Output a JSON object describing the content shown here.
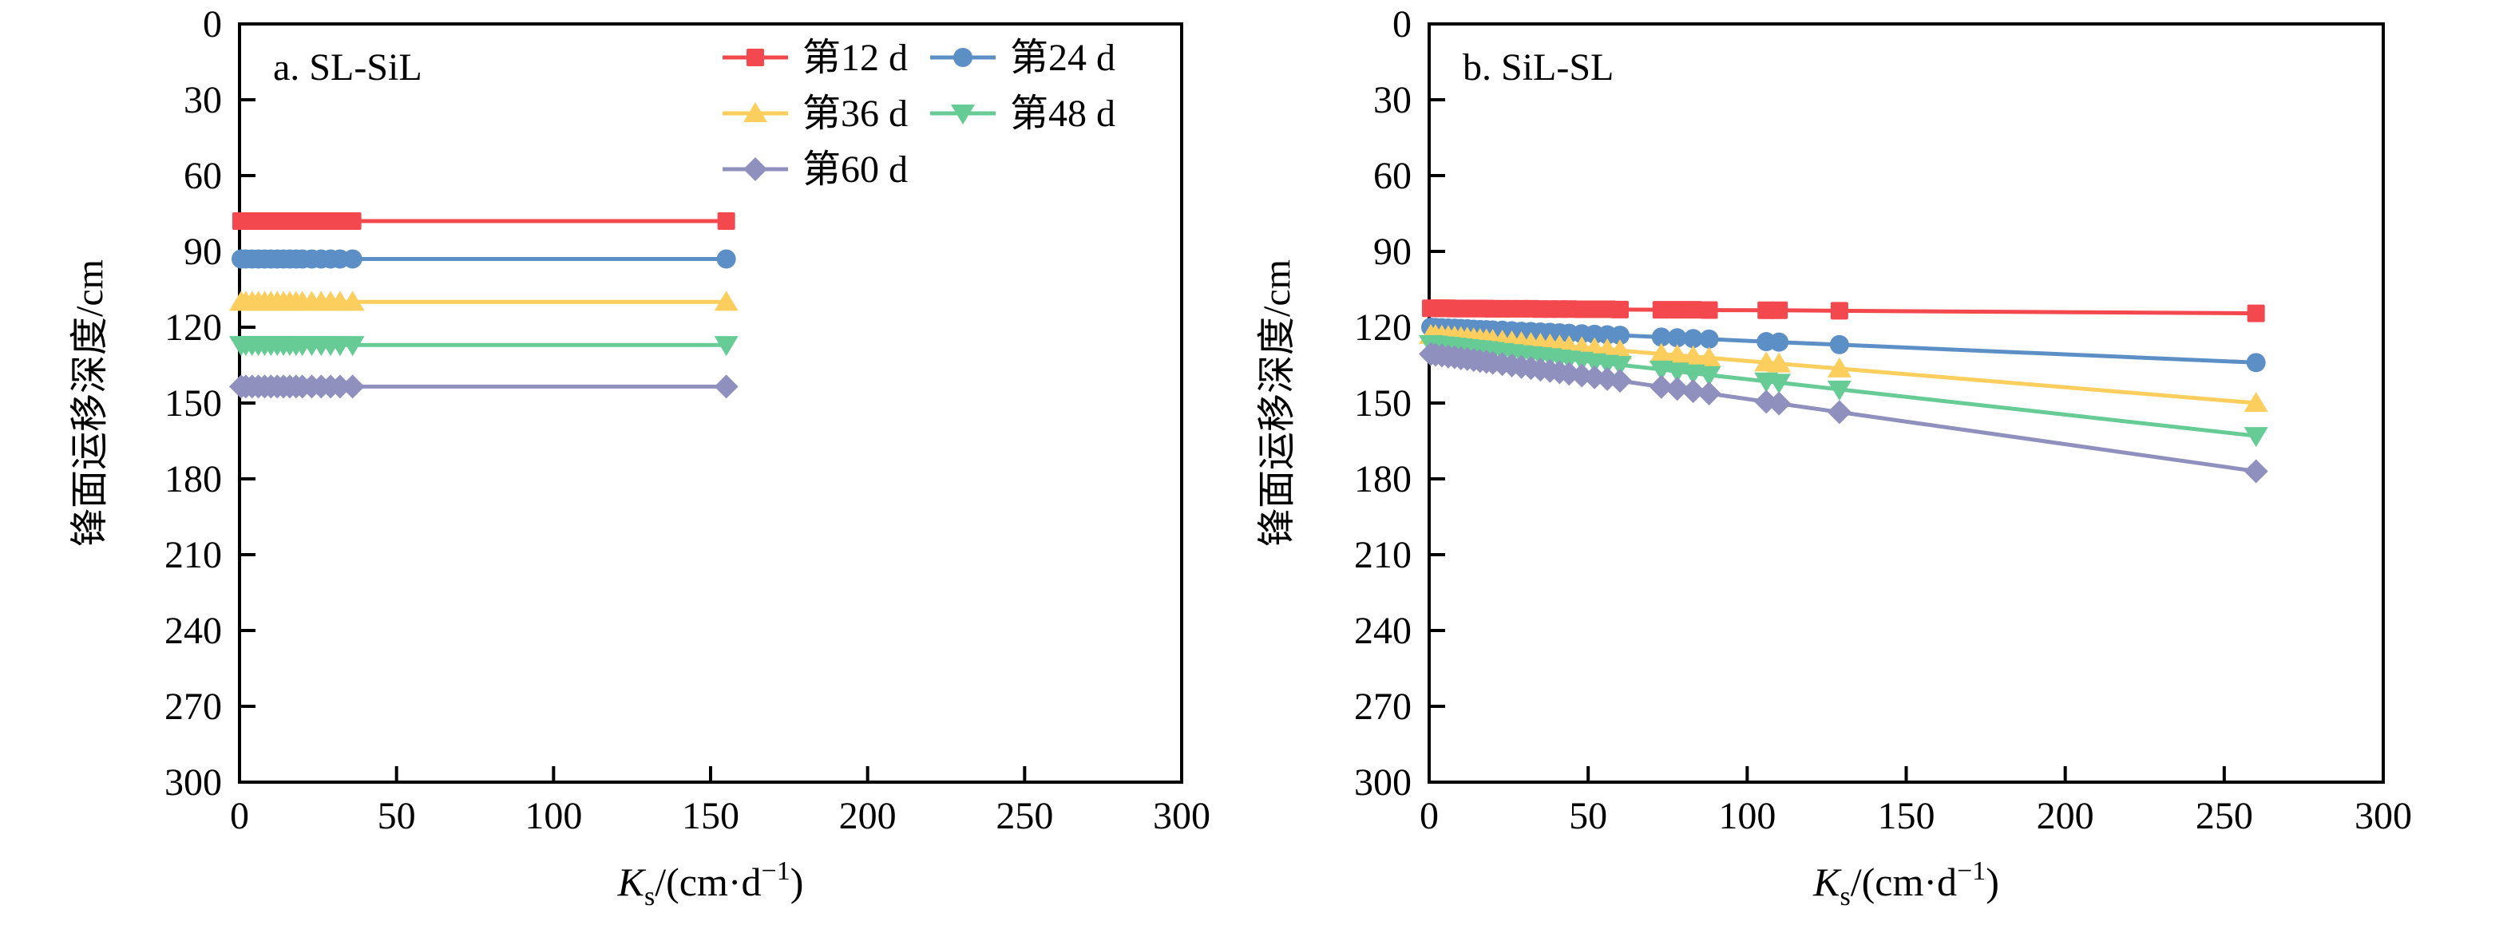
{
  "figure": {
    "background": "#ffffff",
    "panel_titles": [
      "a. SL-SiL",
      "b. SiL-SL"
    ]
  },
  "legend": {
    "position": "top-inside-panel-a, two columns",
    "items": [
      {
        "label": "第12 d",
        "color": "#F3484E",
        "marker": "square"
      },
      {
        "label": "第24 d",
        "color": "#5C8FC6",
        "marker": "circle"
      },
      {
        "label": "第36 d",
        "color": "#FBCE5D",
        "marker": "triangle-up"
      },
      {
        "label": "第48 d",
        "color": "#66CB94",
        "marker": "triangle-down"
      },
      {
        "label": "第60 d",
        "color": "#8F90BD",
        "marker": "diamond"
      }
    ]
  },
  "chart_data": [
    {
      "type": "line",
      "title": "a. SL-SiL",
      "xlabel": "Ks/(cm·d−1)",
      "xlabel_parts": {
        "var": "K",
        "sub": "s",
        "mid": "/(cm·d",
        "sup": "−1",
        "end": ")"
      },
      "ylabel": "锋面运移深度/cm",
      "xlim": [
        0,
        300
      ],
      "ylim": [
        0,
        300
      ],
      "y_axis_inverted": true,
      "grid": false,
      "show_legend": true,
      "x_ticks": [
        0,
        50,
        100,
        150,
        200,
        250,
        300
      ],
      "y_ticks": [
        0,
        30,
        60,
        90,
        120,
        150,
        180,
        210,
        240,
        270,
        300
      ],
      "x": [
        0.5,
        2,
        4,
        6,
        8,
        10,
        12,
        14,
        16,
        18,
        20,
        23,
        26,
        29,
        32,
        36,
        155
      ],
      "series": [
        {
          "name": "第12 d",
          "color": "#F3484E",
          "marker": "square",
          "y": [
            78,
            78,
            78,
            78,
            78,
            78,
            78,
            78,
            78,
            78,
            78,
            78,
            78,
            78,
            78,
            78,
            78
          ]
        },
        {
          "name": "第24 d",
          "color": "#5C8FC6",
          "marker": "circle",
          "y": [
            93,
            93,
            93,
            93,
            93,
            93,
            93,
            93,
            93,
            93,
            93,
            93,
            93,
            93,
            93,
            93,
            93
          ]
        },
        {
          "name": "第36 d",
          "color": "#FBCE5D",
          "marker": "triangle-up",
          "y": [
            110,
            110,
            110,
            110,
            110,
            110,
            110,
            110,
            110,
            110,
            110,
            110,
            110,
            110,
            110,
            110,
            110
          ]
        },
        {
          "name": "第48 d",
          "color": "#66CB94",
          "marker": "triangle-down",
          "y": [
            127,
            127,
            127,
            127,
            127,
            127,
            127,
            127,
            127,
            127,
            127,
            127,
            127,
            127,
            127,
            127,
            127
          ]
        },
        {
          "name": "第60 d",
          "color": "#8F90BD",
          "marker": "diamond",
          "y": [
            143.5,
            143.5,
            143.5,
            143.5,
            143.5,
            143.5,
            143.5,
            143.5,
            143.5,
            143.5,
            143.5,
            143.5,
            143.5,
            143.5,
            143.5,
            143.5,
            143.5
          ]
        }
      ]
    },
    {
      "type": "line",
      "title": "b. SiL-SL",
      "xlabel": "Ks/(cm·d−1)",
      "xlabel_parts": {
        "var": "K",
        "sub": "s",
        "mid": "/(cm·d",
        "sup": "−1",
        "end": ")"
      },
      "ylabel": "锋面运移深度/cm",
      "xlim": [
        0,
        300
      ],
      "ylim": [
        0,
        300
      ],
      "y_axis_inverted": true,
      "grid": false,
      "show_legend": false,
      "x_ticks": [
        0,
        50,
        100,
        150,
        200,
        250,
        300
      ],
      "y_ticks": [
        0,
        30,
        60,
        90,
        120,
        150,
        180,
        210,
        240,
        270,
        300
      ],
      "x": [
        0.5,
        2,
        4,
        6,
        8,
        10,
        12,
        14,
        16,
        18,
        20,
        23,
        26,
        29,
        32,
        35,
        38,
        41,
        44,
        48,
        52,
        56,
        60,
        73,
        78,
        83,
        88,
        106,
        110,
        129,
        260
      ],
      "series": [
        {
          "name": "第12 d",
          "color": "#F3484E",
          "marker": "square",
          "y": [
            112.5,
            112.5,
            112.5,
            112.5,
            112.6,
            112.6,
            112.6,
            112.6,
            112.6,
            112.6,
            112.7,
            112.7,
            112.7,
            112.7,
            112.7,
            112.8,
            112.8,
            112.8,
            112.8,
            112.9,
            112.9,
            112.9,
            113.0,
            113.1,
            113.1,
            113.1,
            113.2,
            113.3,
            113.3,
            113.5,
            114.5
          ]
        },
        {
          "name": "第24 d",
          "color": "#5C8FC6",
          "marker": "circle",
          "y": [
            120.0,
            120.1,
            120.2,
            120.3,
            120.4,
            120.5,
            120.6,
            120.8,
            120.9,
            121.0,
            121.1,
            121.2,
            121.4,
            121.6,
            121.7,
            121.9,
            122.0,
            122.2,
            122.4,
            122.6,
            122.8,
            123.0,
            123.2,
            123.9,
            124.2,
            124.5,
            124.7,
            125.7,
            125.9,
            126.9,
            134.0
          ]
        },
        {
          "name": "第36 d",
          "color": "#FBCE5D",
          "marker": "triangle-up",
          "y": [
            123.1,
            123.2,
            123.4,
            123.6,
            123.8,
            124.0,
            124.2,
            124.5,
            124.7,
            124.9,
            125.1,
            125.4,
            125.7,
            126.0,
            126.3,
            126.6,
            126.9,
            127.3,
            127.6,
            128.0,
            128.4,
            128.8,
            129.2,
            130.6,
            131.1,
            131.6,
            132.1,
            134.0,
            134.4,
            136.4,
            150.0
          ]
        },
        {
          "name": "第48 d",
          "color": "#66CB94",
          "marker": "triangle-down",
          "y": [
            126.6,
            126.8,
            127.1,
            127.3,
            127.6,
            127.9,
            128.2,
            128.5,
            128.7,
            129.0,
            129.3,
            129.7,
            130.2,
            130.6,
            131.0,
            131.4,
            131.8,
            132.3,
            132.7,
            133.2,
            133.8,
            134.4,
            134.9,
            136.7,
            137.5,
            138.2,
            138.9,
            141.4,
            141.9,
            144.6,
            163.0
          ]
        },
        {
          "name": "第60 d",
          "color": "#8F90BD",
          "marker": "diamond",
          "y": [
            130.6,
            130.9,
            131.2,
            131.6,
            131.9,
            132.3,
            132.6,
            133.0,
            133.4,
            133.7,
            134.1,
            134.6,
            135.1,
            135.7,
            136.2,
            136.8,
            137.3,
            137.8,
            138.4,
            139.1,
            139.8,
            140.5,
            141.2,
            143.6,
            144.4,
            145.3,
            146.2,
            149.5,
            150.2,
            153.6,
            177.0
          ]
        }
      ]
    }
  ]
}
